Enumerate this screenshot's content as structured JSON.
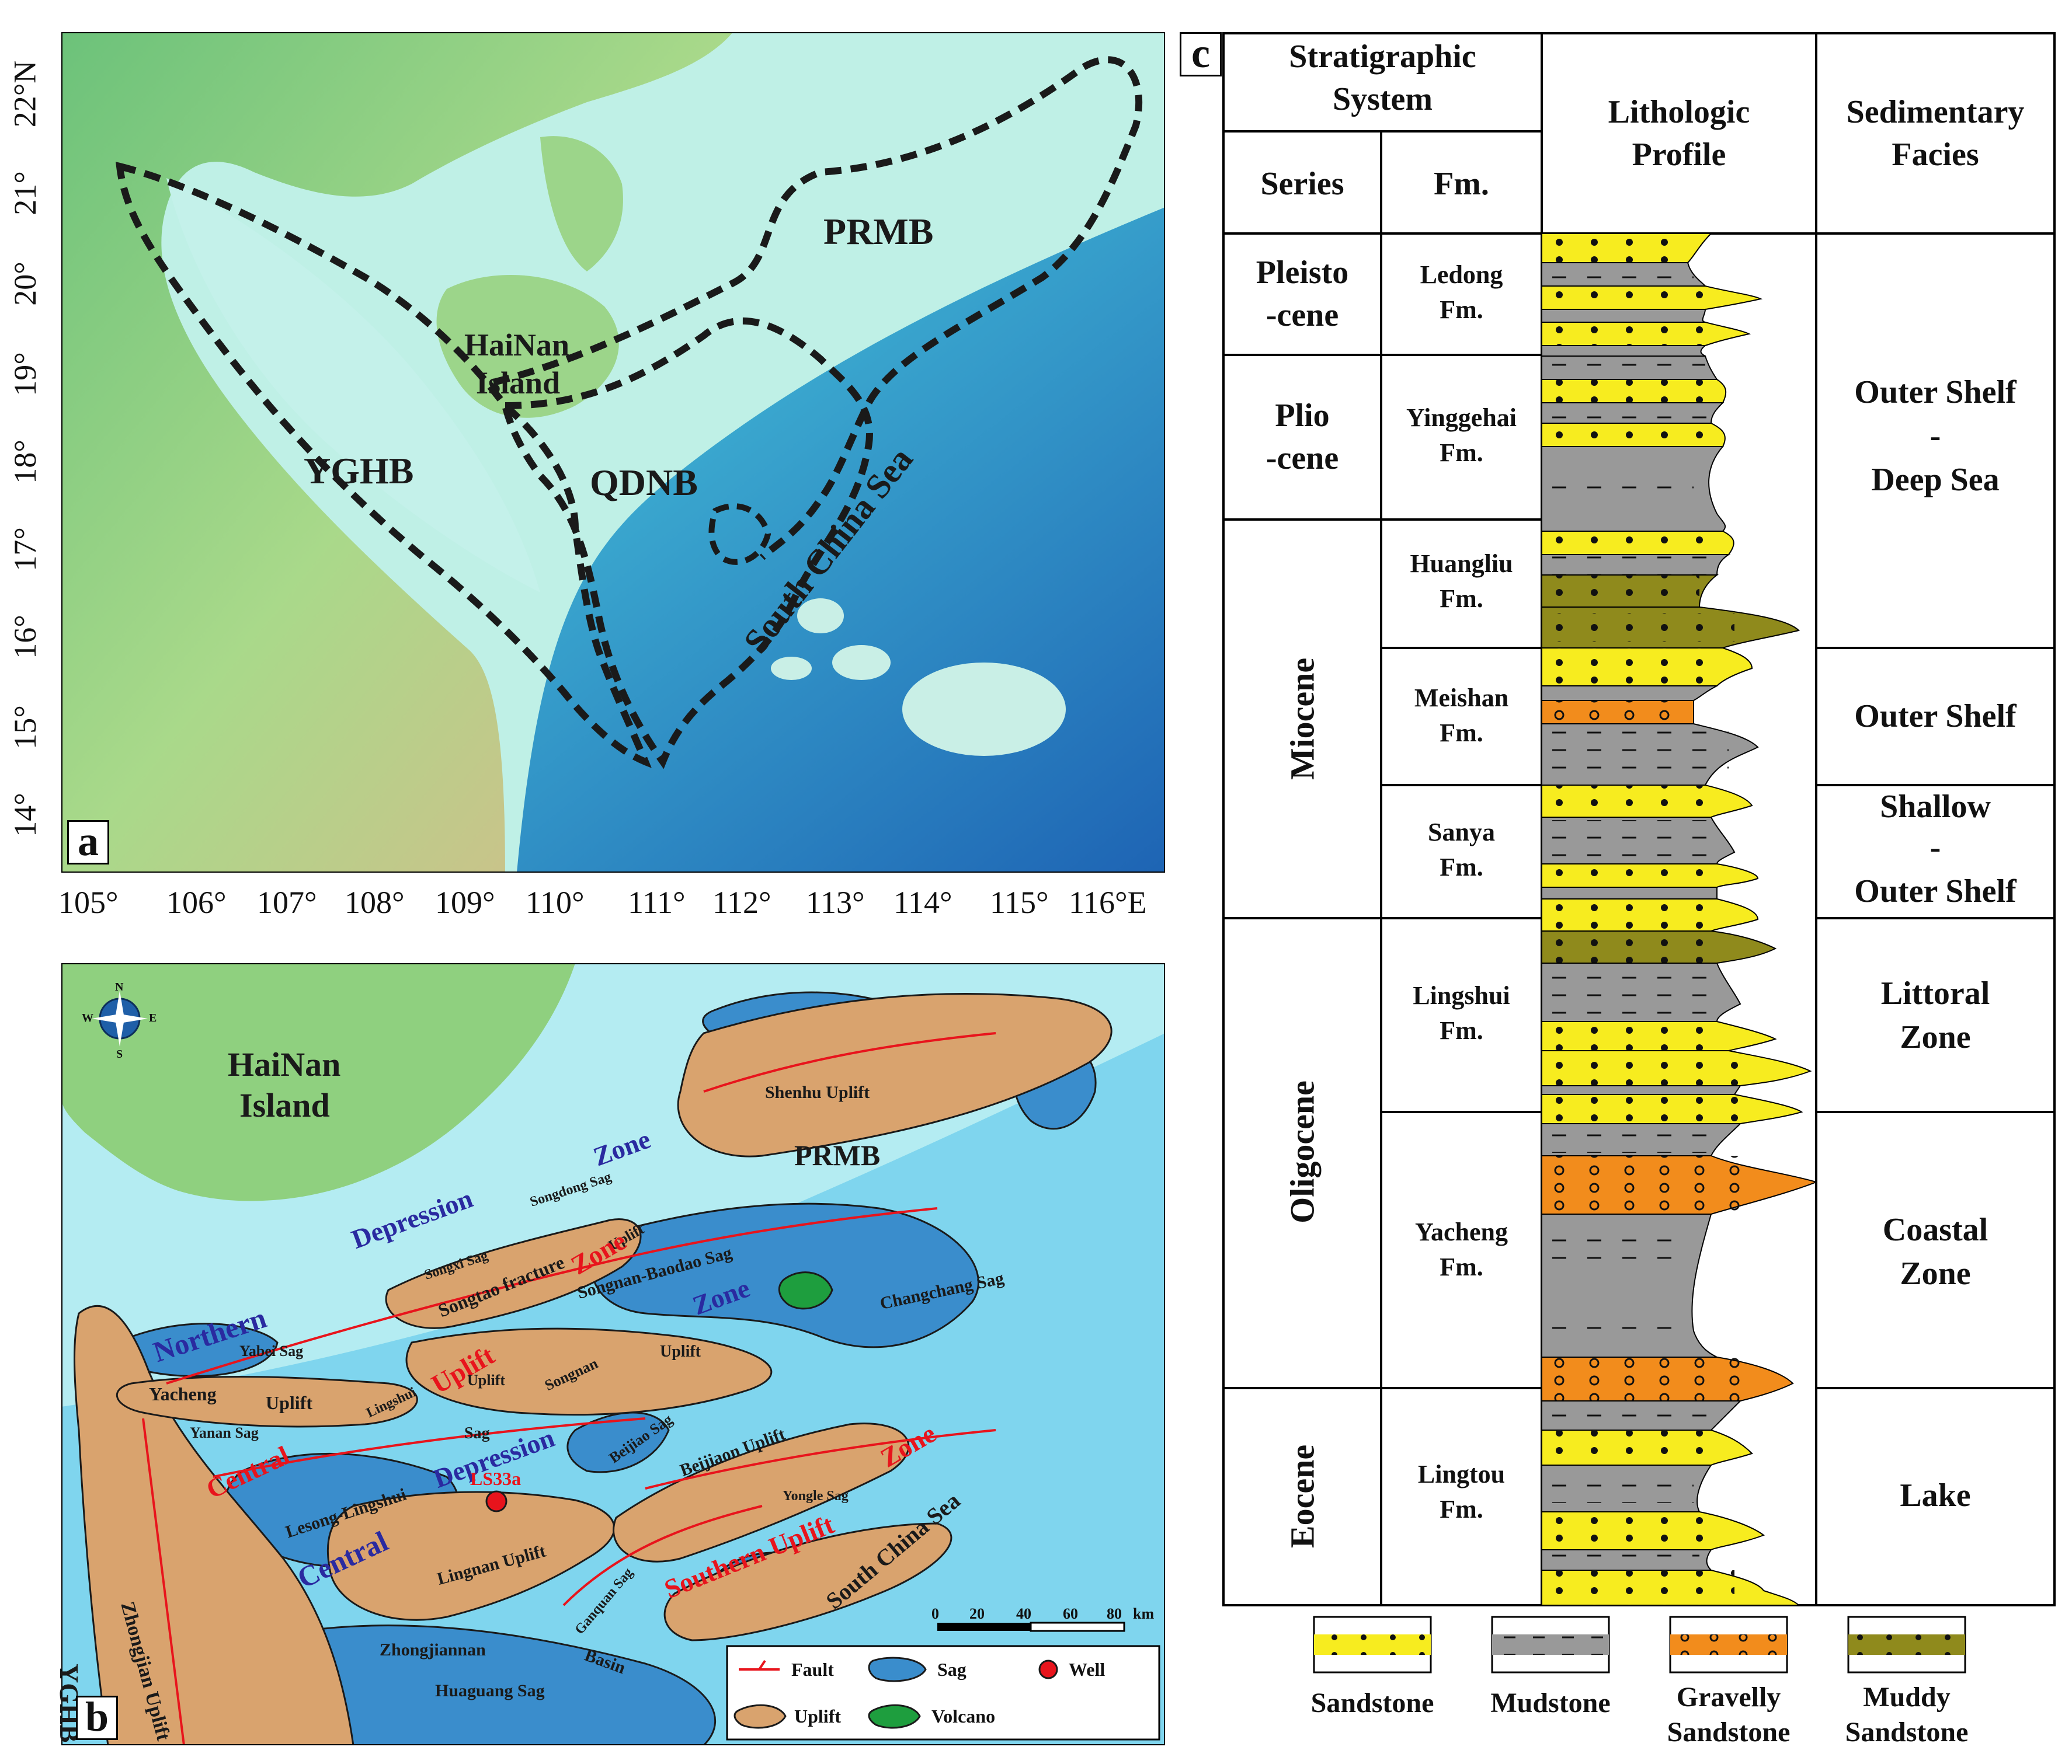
{
  "panel_a": {
    "letter": "a",
    "labels": {
      "prmb": "PRMB",
      "hainan_line1": "HaiNan",
      "hainan_line2": "Island",
      "yghb": "YGHB",
      "qdnb": "QDNB",
      "south_china_sea": "South China Sea"
    },
    "x_ticks": [
      "105°",
      "106°",
      "107°",
      "108°",
      "109°",
      "110°",
      "111°",
      "112°",
      "113°",
      "114°",
      "115°",
      "116°E"
    ],
    "y_ticks": [
      "22°N",
      "21°",
      "20°",
      "19°",
      "18°",
      "17°",
      "16°",
      "15°",
      "14°"
    ]
  },
  "panel_b": {
    "letter": "b",
    "labels": {
      "hainan_line1": "HaiNan",
      "hainan_line2": "Island",
      "shenhu_uplift": "Shenhu Uplift",
      "prmb": "PRMB",
      "zone1": "Zone",
      "depression1": "Depression",
      "songdong_sag": "Songdong Sag",
      "uplift1": "Uplift",
      "songxi_sag": "Songxi Sag",
      "songtao": "Songtao fracture",
      "zone2": "Zone",
      "songnan_baodao": "Songnan-Baodao Sag",
      "zone3": "Zone",
      "changchang": "Changchang Sag",
      "northern": "Northern",
      "yabei": "Yabei Sag",
      "uplift_red": "Uplift",
      "uplift2": "Uplift",
      "yacheng": "Yacheng",
      "uplift3": "Uplift",
      "lingshui": "Lingshui",
      "uplift4": "Uplift",
      "songnan": "Songnan",
      "yanan_sag": "Yanan Sag",
      "central_red": "Central",
      "sag": "Sag",
      "depression2": "Depression",
      "beijiao_sag": "Beijiao Sag",
      "beijiao_uplift": "Beijiaon Uplift",
      "zone_red": "Zone",
      "yongle_sag": "Yongle Sag",
      "lesong": "Lesong-Lingshui",
      "central2": "Central",
      "ls33a": "LS33a",
      "lingnan_uplift": "Lingnan Uplift",
      "ganquan_sag": "Ganquan Sag",
      "southern_uplift": "Southern Uplift",
      "south_china_sea": "South China Sea",
      "zhongjian_uplift": "Zhongjian Uplift",
      "yghb": "YGHB",
      "zhongjiannan": "Zhongjiannan",
      "basin": "Basin",
      "huaguang": "Huaguang Sag"
    },
    "scale": {
      "ticks": [
        "0",
        "20",
        "40",
        "60",
        "80"
      ],
      "unit": "km"
    },
    "legend": {
      "fault": "Fault",
      "sag": "Sag",
      "well": "Well",
      "uplift": "Uplift",
      "volcano": "Volcano"
    },
    "compass": {
      "n": "N",
      "s": "S",
      "e": "E",
      "w": "W"
    }
  },
  "panel_c": {
    "letter": "c",
    "headers": {
      "strat_line1": "Stratigraphic",
      "strat_line2": "System",
      "series": "Series",
      "fm": "Fm.",
      "litho_line1": "Lithologic",
      "litho_line2": "Profile",
      "facies_line1": "Sedimentary",
      "facies_line2": "Facies"
    },
    "series": [
      {
        "line1": "Pleisto",
        "line2": "-cene"
      },
      {
        "line1": "Plio",
        "line2": "-cene"
      },
      {
        "line1": "Miocene",
        "line2": ""
      },
      {
        "line1": "Oligocene",
        "line2": ""
      },
      {
        "line1": "Eocene",
        "line2": ""
      }
    ],
    "formations": [
      {
        "line1": "Ledong",
        "line2": "Fm."
      },
      {
        "line1": "Yinggehai",
        "line2": "Fm."
      },
      {
        "line1": "Huangliu",
        "line2": "Fm."
      },
      {
        "line1": "Meishan",
        "line2": "Fm."
      },
      {
        "line1": "Sanya",
        "line2": "Fm."
      },
      {
        "line1": "Lingshui",
        "line2": "Fm."
      },
      {
        "line1": "Yacheng",
        "line2": "Fm."
      },
      {
        "line1": "Lingtou",
        "line2": "Fm."
      }
    ],
    "facies": [
      {
        "line1": "Outer Shelf",
        "line2": "-",
        "line3": "Deep Sea"
      },
      {
        "line1": "Outer Shelf",
        "line2": "",
        "line3": ""
      },
      {
        "line1": "Shallow",
        "line2": "-",
        "line3": "Outer Shelf"
      },
      {
        "line1": "Littoral",
        "line2": "Zone",
        "line3": ""
      },
      {
        "line1": "Coastal",
        "line2": "Zone",
        "line3": ""
      },
      {
        "line1": "Lake",
        "line2": "",
        "line3": ""
      }
    ],
    "legend": [
      {
        "line1": "Sandstone",
        "line2": ""
      },
      {
        "line1": "Mudstone",
        "line2": ""
      },
      {
        "line1": "Gravelly",
        "line2": "Sandstone"
      },
      {
        "line1": "Muddy",
        "line2": "Sandstone"
      }
    ]
  },
  "colors": {
    "sandstone": "#f7ec1f",
    "mudstone": "#999999",
    "gravelly_sandstone": "#f28c1c",
    "muddy_sandstone": "#8f8a1c",
    "uplift": "#d9a36e",
    "sag": "#3a8dcc",
    "volcano": "#1e9e3e",
    "well": "#e8141c",
    "fault": "#e8141c"
  }
}
